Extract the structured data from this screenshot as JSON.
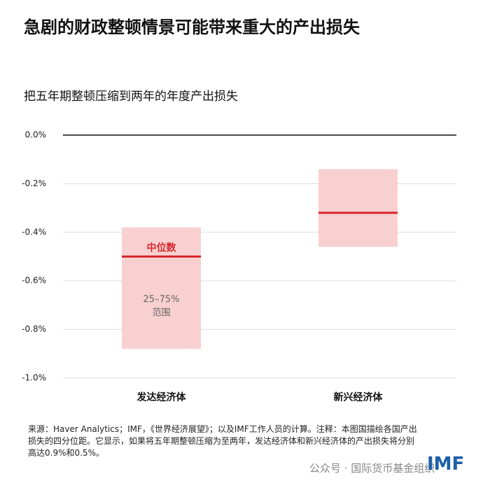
{
  "chart_data": {
    "type": "box",
    "title": "急剧的财政整顿情景可能带来重大的产出损失",
    "subtitle": "把五年期整顿压缩到两年的年度产出损失",
    "categories": [
      "发达经济体",
      "新兴经济体"
    ],
    "q1": [
      -0.88,
      -0.46
    ],
    "q3": [
      -0.38,
      -0.14
    ],
    "median": [
      -0.5,
      -0.32
    ],
    "box_color": "#f8d0d0",
    "median_color": "#d7262b",
    "median_label": "中位数",
    "range_label": [
      "25–75%",
      "范围"
    ],
    "ylim": [
      -1.0,
      0.0
    ],
    "yticks": [
      {
        "value": 0.0,
        "label": "0.0%"
      },
      {
        "value": -0.2,
        "label": "-0.2%"
      },
      {
        "value": -0.4,
        "label": "-0.4%"
      },
      {
        "value": -0.6,
        "label": "-0.6%"
      },
      {
        "value": -0.8,
        "label": "-0.8%"
      },
      {
        "value": -1.0,
        "label": "-1.0%"
      }
    ],
    "grid": true,
    "source": "来源：Haver Analytics；IMF，《世界经济展望》；以及IMF工作人员的计算。注释：本图国描绘各国产出损失的四分位距。它显示，如果将五年期整顿压缩为至两年，发达经济体和新兴经济体的产出损失将分别高达0.9%和0.5%。",
    "watermark": "公众号 · 国际货币基金组织",
    "logo": "IMF"
  }
}
